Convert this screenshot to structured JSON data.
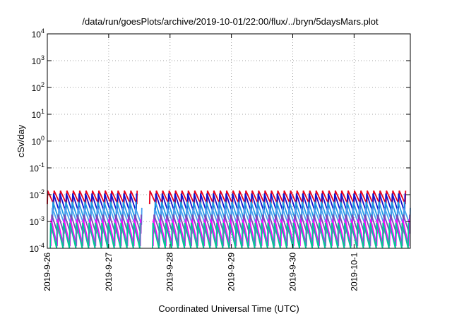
{
  "chart_data": {
    "type": "line",
    "title": "/data/run/goesPlots/archive/2019-10-01/22:00/flux/../bryn/5daysMars.plot",
    "xlabel": "Coordinated Universal Time (UTC)",
    "ylabel": "cSv/day",
    "yscale": "log",
    "ylim": [
      0.0001,
      10000
    ],
    "xlim": [
      "2019-09-26T00:00",
      "2019-10-01T22:00"
    ],
    "x_ticks": [
      "2019-9-26",
      "2019-9-27",
      "2019-9-28",
      "2019-9-29",
      "2019-9-30",
      "2019-10-1"
    ],
    "y_ticks": [
      {
        "base": "10",
        "exp": "-4"
      },
      {
        "base": "10",
        "exp": "-3"
      },
      {
        "base": "10",
        "exp": "-2"
      },
      {
        "base": "10",
        "exp": "-1"
      },
      {
        "base": "10",
        "exp": "0"
      },
      {
        "base": "10",
        "exp": "1"
      },
      {
        "base": "10",
        "exp": "2"
      },
      {
        "base": "10",
        "exp": "3"
      },
      {
        "base": "10",
        "exp": "4"
      }
    ],
    "grid": true,
    "pattern": "sawtooth",
    "sawtooth_period_hours": 2.5,
    "gap": {
      "start": "2019-09-27T13:00",
      "end": "2019-09-27T16:00"
    },
    "series": [
      {
        "color": "#e8001c",
        "peak": 0.014,
        "trough": 0.0045
      },
      {
        "color": "#1010d0",
        "peak": 0.011,
        "trough": 0.0022
      },
      {
        "color": "#1f9be0",
        "peak": 0.0055,
        "trough": 0.0011
      },
      {
        "color": "#4aa0f0",
        "peak": 0.0032,
        "trough": 0.00075
      },
      {
        "color": "#7a4ab8",
        "peak": 0.0018,
        "trough": 0.00035
      },
      {
        "color": "#ff00ff",
        "peak": 0.0012,
        "trough": 0.00012
      },
      {
        "color": "#00c896",
        "peak": 0.0009,
        "trough": 9e-05
      }
    ]
  }
}
